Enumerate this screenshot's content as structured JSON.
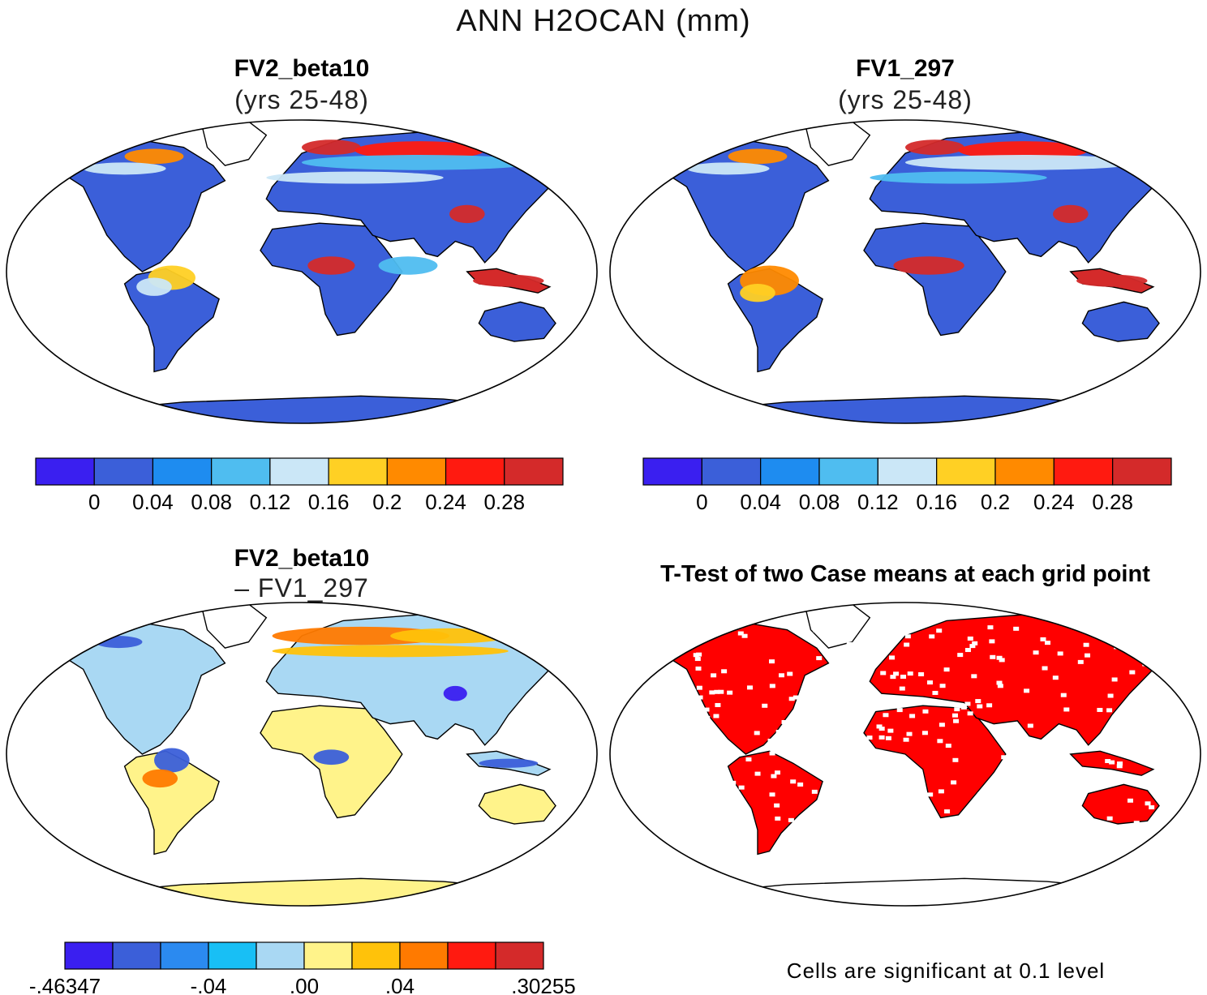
{
  "figure": {
    "title": "ANN H2OCAN (mm)",
    "footnote": "Cells are significant at 0.1 level"
  },
  "chart_data": [
    {
      "type": "heatmap",
      "title": "FV2_beta10",
      "subtitle": "(yrs 25-48)",
      "projection": "Robinson (global)",
      "colorbar": {
        "colors": [
          "#3a1ff0",
          "#3b5fd9",
          "#1e8cf0",
          "#4fbdf0",
          "#cbe7f7",
          "#ffd024",
          "#ff8a00",
          "#ff1a10",
          "#d42a2a"
        ],
        "tick_labels": [
          "0",
          "0.04",
          "0.08",
          "0.12",
          "0.16",
          "0.2",
          "0.24",
          "0.28"
        ]
      }
    },
    {
      "type": "heatmap",
      "title": "FV1_297",
      "subtitle": "(yrs 25-48)",
      "projection": "Robinson (global)",
      "colorbar": {
        "colors": [
          "#3a1ff0",
          "#3b5fd9",
          "#1e8cf0",
          "#4fbdf0",
          "#cbe7f7",
          "#ffd024",
          "#ff8a00",
          "#ff1a10",
          "#d42a2a"
        ],
        "tick_labels": [
          "0",
          "0.04",
          "0.08",
          "0.12",
          "0.16",
          "0.2",
          "0.24",
          "0.28"
        ]
      }
    },
    {
      "type": "heatmap",
      "title": "FV2_beta10",
      "subtitle": "– FV1_297",
      "projection": "Robinson (global)",
      "colorbar": {
        "colors": [
          "#3a1ff0",
          "#3b5fd9",
          "#2b8af0",
          "#18bff5",
          "#a9d8f3",
          "#fff38a",
          "#ffc20a",
          "#ff7a00",
          "#ff1a10",
          "#d42a2a"
        ],
        "tick_labels": [
          "-.46347",
          "-.04",
          ".00",
          ".04",
          ".30255"
        ]
      }
    },
    {
      "type": "heatmap",
      "title": "T-Test of two Case means at each grid point",
      "projection": "Robinson (global)",
      "significance_color": "#ff0000"
    }
  ]
}
